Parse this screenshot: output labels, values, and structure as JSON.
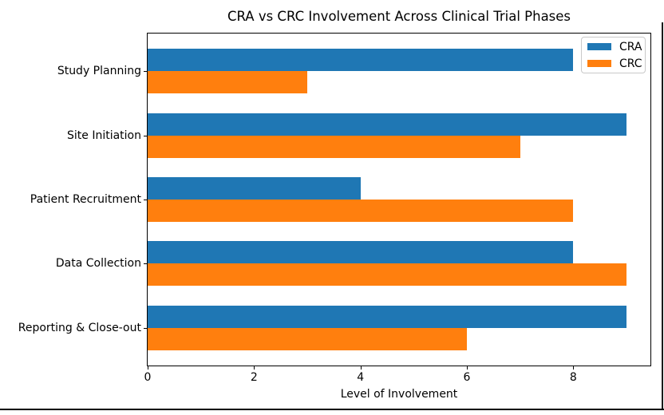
{
  "chart_data": {
    "type": "bar",
    "orientation": "horizontal",
    "title": "CRA vs CRC Involvement Across Clinical Trial Phases",
    "xlabel": "Level of Involvement",
    "ylabel": "",
    "categories": [
      "Study Planning",
      "Site Initiation",
      "Patient Recruitment",
      "Data Collection",
      "Reporting & Close-out"
    ],
    "series": [
      {
        "name": "CRA",
        "color": "#1f77b4",
        "values": [
          8,
          9,
          4,
          8,
          9
        ]
      },
      {
        "name": "CRC",
        "color": "#ff7f0e",
        "values": [
          3,
          7,
          8,
          9,
          6
        ]
      }
    ],
    "xlim": [
      0,
      9.45
    ],
    "xticks": [
      0,
      2,
      4,
      6,
      8
    ],
    "legend_position": "upper right",
    "grid": false
  }
}
